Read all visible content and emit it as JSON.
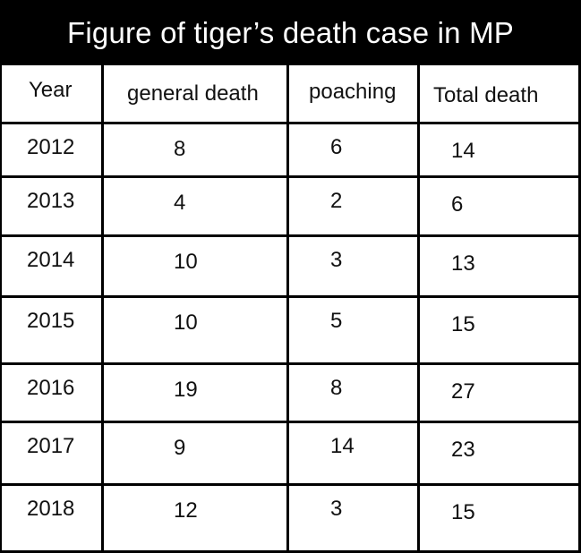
{
  "title": "Figure of tiger’s death case in MP",
  "columns": [
    "Year",
    "general death",
    "poaching",
    "Total death"
  ],
  "rows": [
    {
      "year": "2012",
      "general": "8",
      "poaching": "6",
      "total": "14"
    },
    {
      "year": "2013",
      "general": "4",
      "poaching": "2",
      "total": "6"
    },
    {
      "year": "2014",
      "general": "10",
      "poaching": "3",
      "total": "13"
    },
    {
      "year": "2015",
      "general": "10",
      "poaching": "5",
      "total": "15"
    },
    {
      "year": "2016",
      "general": "19",
      "poaching": "8",
      "total": "27"
    },
    {
      "year": "2017",
      "general": "9",
      "poaching": "14",
      "total": "23"
    },
    {
      "year": "2018",
      "general": "12",
      "poaching": "3",
      "total": "15"
    }
  ],
  "chart_data": {
    "type": "table",
    "title": "Figure of tiger’s death case in MP",
    "columns": [
      "Year",
      "general death",
      "poaching",
      "Total death"
    ],
    "rows": [
      [
        "2012",
        8,
        6,
        14
      ],
      [
        "2013",
        4,
        2,
        6
      ],
      [
        "2014",
        10,
        3,
        13
      ],
      [
        "2015",
        10,
        5,
        15
      ],
      [
        "2016",
        19,
        8,
        27
      ],
      [
        "2017",
        9,
        14,
        23
      ],
      [
        "2018",
        12,
        3,
        15
      ]
    ]
  }
}
